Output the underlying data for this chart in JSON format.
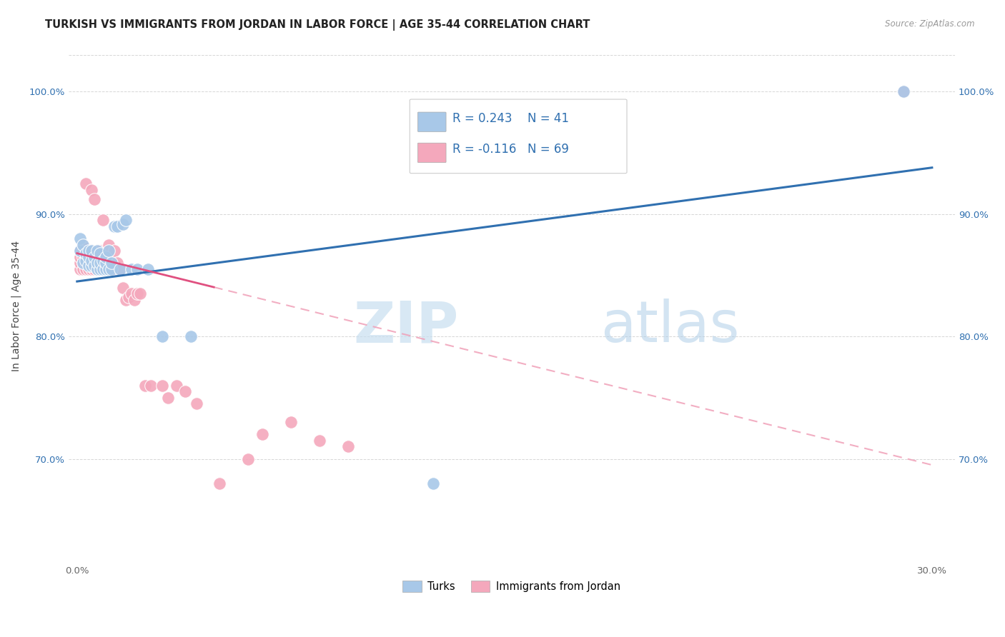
{
  "title": "TURKISH VS IMMIGRANTS FROM JORDAN IN LABOR FORCE | AGE 35-44 CORRELATION CHART",
  "source": "Source: ZipAtlas.com",
  "ylabel": "In Labor Force | Age 35-44",
  "x_ticks": [
    0.0,
    0.3
  ],
  "x_tick_labels": [
    "0.0%",
    "30.0%"
  ],
  "y_ticks": [
    0.7,
    0.8,
    0.9,
    1.0
  ],
  "y_tick_labels": [
    "70.0%",
    "80.0%",
    "90.0%",
    "100.0%"
  ],
  "xlim": [
    -0.003,
    0.308
  ],
  "ylim": [
    0.615,
    1.035
  ],
  "legend_blue_r": "0.243",
  "legend_blue_n": "41",
  "legend_pink_r": "-0.116",
  "legend_pink_n": "69",
  "legend_label_blue": "Turks",
  "legend_label_pink": "Immigrants from Jordan",
  "blue_color": "#a8c8e8",
  "pink_color": "#f4a8bc",
  "blue_line_color": "#3070b0",
  "pink_line_color": "#e05080",
  "pink_dash_color": "#f0a0b8",
  "title_fontsize": 10.5,
  "axis_label_fontsize": 10,
  "tick_fontsize": 9.5,
  "blue_trend_x0": 0.0,
  "blue_trend_y0": 0.845,
  "blue_trend_x1": 0.3,
  "blue_trend_y1": 0.938,
  "pink_trend_x0": 0.0,
  "pink_trend_y0": 0.868,
  "pink_trend_x1": 0.3,
  "pink_trend_y1": 0.695,
  "blue_scatter_x": [
    0.001,
    0.001,
    0.002,
    0.002,
    0.003,
    0.003,
    0.004,
    0.004,
    0.004,
    0.005,
    0.005,
    0.005,
    0.006,
    0.006,
    0.007,
    0.007,
    0.007,
    0.008,
    0.008,
    0.008,
    0.009,
    0.009,
    0.01,
    0.01,
    0.01,
    0.011,
    0.011,
    0.012,
    0.012,
    0.013,
    0.014,
    0.015,
    0.016,
    0.017,
    0.019,
    0.021,
    0.025,
    0.03,
    0.04,
    0.125,
    0.29
  ],
  "blue_scatter_y": [
    0.87,
    0.88,
    0.86,
    0.875,
    0.862,
    0.868,
    0.858,
    0.865,
    0.87,
    0.858,
    0.862,
    0.87,
    0.858,
    0.865,
    0.855,
    0.86,
    0.87,
    0.855,
    0.86,
    0.868,
    0.855,
    0.862,
    0.855,
    0.86,
    0.865,
    0.855,
    0.87,
    0.855,
    0.86,
    0.89,
    0.89,
    0.855,
    0.892,
    0.895,
    0.855,
    0.855,
    0.855,
    0.8,
    0.8,
    0.68,
    1.0
  ],
  "pink_scatter_x": [
    0.001,
    0.001,
    0.001,
    0.001,
    0.002,
    0.002,
    0.002,
    0.002,
    0.002,
    0.003,
    0.003,
    0.003,
    0.003,
    0.003,
    0.003,
    0.004,
    0.004,
    0.004,
    0.004,
    0.005,
    0.005,
    0.005,
    0.005,
    0.005,
    0.006,
    0.006,
    0.006,
    0.007,
    0.007,
    0.007,
    0.008,
    0.008,
    0.008,
    0.009,
    0.009,
    0.009,
    0.01,
    0.01,
    0.01,
    0.011,
    0.011,
    0.011,
    0.012,
    0.012,
    0.013,
    0.013,
    0.014,
    0.015,
    0.016,
    0.017,
    0.018,
    0.019,
    0.02,
    0.021,
    0.022,
    0.024,
    0.026,
    0.03,
    0.032,
    0.035,
    0.038,
    0.042,
    0.05,
    0.06,
    0.065,
    0.075,
    0.085,
    0.095,
    0.29
  ],
  "pink_scatter_y": [
    0.855,
    0.86,
    0.865,
    0.87,
    0.855,
    0.86,
    0.865,
    0.87,
    0.875,
    0.855,
    0.86,
    0.865,
    0.868,
    0.872,
    0.925,
    0.855,
    0.86,
    0.865,
    0.87,
    0.855,
    0.86,
    0.865,
    0.87,
    0.92,
    0.855,
    0.86,
    0.912,
    0.855,
    0.86,
    0.87,
    0.855,
    0.86,
    0.87,
    0.855,
    0.86,
    0.895,
    0.855,
    0.86,
    0.87,
    0.855,
    0.865,
    0.875,
    0.855,
    0.862,
    0.855,
    0.87,
    0.86,
    0.855,
    0.84,
    0.83,
    0.832,
    0.835,
    0.83,
    0.835,
    0.835,
    0.76,
    0.76,
    0.76,
    0.75,
    0.76,
    0.755,
    0.745,
    0.68,
    0.7,
    0.72,
    0.73,
    0.715,
    0.71,
    1.0
  ]
}
